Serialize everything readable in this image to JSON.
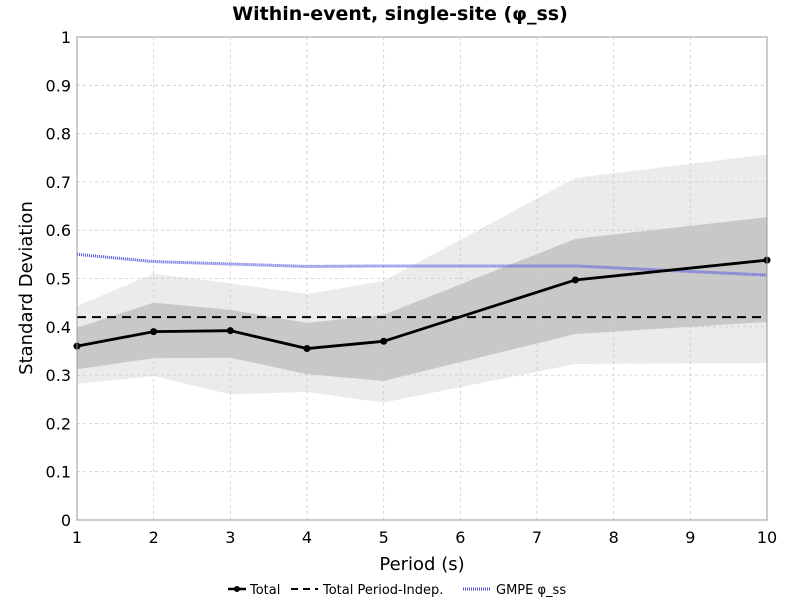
{
  "chart_data": {
    "type": "line",
    "title": "Within-event, single-site (φ_ss)",
    "xlabel": "Period (s)",
    "ylabel": "Standard Deviation",
    "xlim": [
      1,
      10
    ],
    "ylim": [
      0,
      1
    ],
    "xticks": [
      "1",
      "2",
      "3",
      "4",
      "5",
      "6",
      "7",
      "8",
      "9",
      "10"
    ],
    "yticks": [
      "0",
      "0.1",
      "0.2",
      "0.3",
      "0.4",
      "0.5",
      "0.6",
      "0.7",
      "0.8",
      "0.9",
      "1"
    ],
    "grid": true,
    "legend_position": "bottom",
    "series": [
      {
        "name": "Total",
        "style": "solid-marker",
        "color": "#000000",
        "x": [
          1,
          2,
          3,
          4,
          5,
          7.5,
          10
        ],
        "y": [
          0.36,
          0.39,
          0.392,
          0.355,
          0.37,
          0.497,
          0.538
        ]
      },
      {
        "name": "Total Period-Indep.",
        "style": "dashed",
        "color": "#000000",
        "x": [
          1,
          10
        ],
        "y": [
          0.42,
          0.42
        ]
      },
      {
        "name": "GMPE φ_ss",
        "style": "dotted",
        "color": "#5555e0",
        "x": [
          1,
          2,
          3,
          4,
          5,
          7.5,
          10
        ],
        "y": [
          0.55,
          0.535,
          0.53,
          0.525,
          0.526,
          0.526,
          0.507
        ]
      }
    ],
    "bands": [
      {
        "color": "#ebebeb",
        "x": [
          1,
          2,
          3,
          4,
          5,
          7.5,
          10
        ],
        "lower": [
          0.282,
          0.298,
          0.26,
          0.265,
          0.243,
          0.323,
          0.325
        ],
        "upper": [
          0.443,
          0.51,
          0.49,
          0.468,
          0.495,
          0.708,
          0.757
        ]
      },
      {
        "color": "#c8c8c8",
        "x": [
          1,
          2,
          3,
          4,
          5,
          7.5,
          10
        ],
        "lower": [
          0.312,
          0.335,
          0.336,
          0.302,
          0.288,
          0.385,
          0.41
        ],
        "upper": [
          0.398,
          0.45,
          0.435,
          0.408,
          0.425,
          0.582,
          0.627
        ]
      }
    ]
  }
}
